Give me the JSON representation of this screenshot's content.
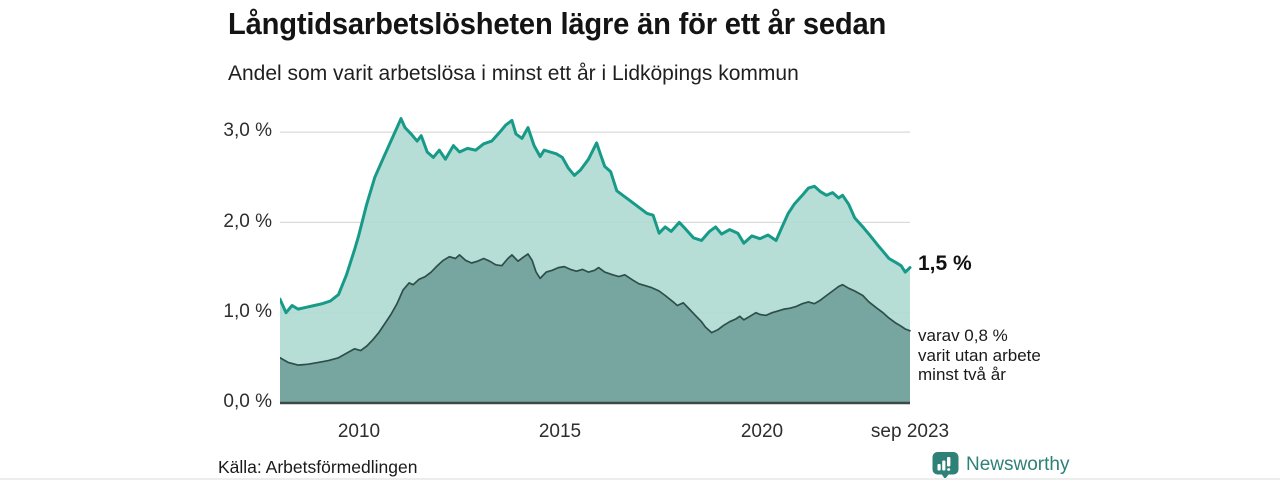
{
  "header": {
    "title": "Långtidsarbetslösheten lägre än för ett år sedan",
    "subtitle": "Andel som varit arbetslösa i minst ett år i Lidköpings kommun"
  },
  "footer": {
    "source": "Källa: Arbetsförmedlingen",
    "brand": "Newsworthy"
  },
  "chart_data": {
    "type": "area",
    "title": "Långtidsarbetslösheten lägre än för ett år sedan",
    "subtitle": "Andel som varit arbetslösa i minst ett år i Lidköpings kommun",
    "unit": "%",
    "t_range": [
      2008.05,
      2023.67
    ],
    "ylim": [
      0,
      3.3
    ],
    "grid": true,
    "grid_values": [
      1,
      2,
      3
    ],
    "y_ticks": [
      {
        "label": "3,0 %",
        "v": 3.0
      },
      {
        "label": "2,0 %",
        "v": 2.0
      },
      {
        "label": "1,0 %",
        "v": 1.0
      },
      {
        "label": "0,0 %",
        "v": 0.0
      }
    ],
    "x_ticks": [
      {
        "label": "2010",
        "t": 2010
      },
      {
        "label": "2015",
        "t": 2015
      },
      {
        "label": "2020",
        "t": 2020
      },
      {
        "label": "sep 2023",
        "t": 2023.67
      }
    ],
    "end_labels": {
      "primary": "1,5 %",
      "secondary_lines": [
        "varav 0,8 %",
        "varit utan arbete",
        "minst två år"
      ]
    },
    "colors": {
      "grid": "#dadada",
      "axis": "#3c4946",
      "teal_line": "#189a89",
      "teal_fill": "#afdad2",
      "dark_line": "#2e4e4a",
      "dark_fill": "#6fa099",
      "brand": "#2f8077"
    },
    "series": [
      {
        "id": "min-one-year",
        "name": "Arbetslösa minst ett år",
        "end_value": 1.5,
        "line_color": "#189a89",
        "fill_color": "#afdad2",
        "points": [
          [
            2008.05,
            1.15
          ],
          [
            2008.2,
            1.0
          ],
          [
            2008.35,
            1.08
          ],
          [
            2008.5,
            1.04
          ],
          [
            2008.7,
            1.06
          ],
          [
            2008.9,
            1.08
          ],
          [
            2009.1,
            1.1
          ],
          [
            2009.3,
            1.13
          ],
          [
            2009.5,
            1.2
          ],
          [
            2009.7,
            1.42
          ],
          [
            2009.9,
            1.7
          ],
          [
            2010.0,
            1.85
          ],
          [
            2010.2,
            2.2
          ],
          [
            2010.4,
            2.5
          ],
          [
            2010.6,
            2.7
          ],
          [
            2010.8,
            2.9
          ],
          [
            2010.95,
            3.05
          ],
          [
            2011.05,
            3.15
          ],
          [
            2011.15,
            3.05
          ],
          [
            2011.3,
            2.98
          ],
          [
            2011.45,
            2.9
          ],
          [
            2011.55,
            2.96
          ],
          [
            2011.7,
            2.78
          ],
          [
            2011.85,
            2.72
          ],
          [
            2012.0,
            2.8
          ],
          [
            2012.15,
            2.7
          ],
          [
            2012.35,
            2.85
          ],
          [
            2012.5,
            2.78
          ],
          [
            2012.7,
            2.82
          ],
          [
            2012.9,
            2.8
          ],
          [
            2013.1,
            2.87
          ],
          [
            2013.3,
            2.9
          ],
          [
            2013.5,
            3.0
          ],
          [
            2013.65,
            3.08
          ],
          [
            2013.8,
            3.13
          ],
          [
            2013.9,
            2.98
          ],
          [
            2014.05,
            2.93
          ],
          [
            2014.2,
            3.05
          ],
          [
            2014.35,
            2.85
          ],
          [
            2014.5,
            2.73
          ],
          [
            2014.6,
            2.8
          ],
          [
            2014.75,
            2.78
          ],
          [
            2014.9,
            2.76
          ],
          [
            2015.05,
            2.72
          ],
          [
            2015.2,
            2.6
          ],
          [
            2015.35,
            2.52
          ],
          [
            2015.5,
            2.58
          ],
          [
            2015.7,
            2.7
          ],
          [
            2015.9,
            2.88
          ],
          [
            2016.0,
            2.75
          ],
          [
            2016.1,
            2.62
          ],
          [
            2016.25,
            2.56
          ],
          [
            2016.4,
            2.35
          ],
          [
            2016.55,
            2.3
          ],
          [
            2016.7,
            2.25
          ],
          [
            2016.85,
            2.2
          ],
          [
            2017.0,
            2.15
          ],
          [
            2017.15,
            2.1
          ],
          [
            2017.3,
            2.08
          ],
          [
            2017.45,
            1.88
          ],
          [
            2017.6,
            1.95
          ],
          [
            2017.75,
            1.9
          ],
          [
            2017.95,
            2.0
          ],
          [
            2018.1,
            1.93
          ],
          [
            2018.3,
            1.83
          ],
          [
            2018.5,
            1.8
          ],
          [
            2018.7,
            1.9
          ],
          [
            2018.85,
            1.95
          ],
          [
            2019.0,
            1.87
          ],
          [
            2019.2,
            1.92
          ],
          [
            2019.4,
            1.88
          ],
          [
            2019.55,
            1.77
          ],
          [
            2019.75,
            1.85
          ],
          [
            2019.95,
            1.82
          ],
          [
            2020.15,
            1.86
          ],
          [
            2020.35,
            1.8
          ],
          [
            2020.5,
            1.95
          ],
          [
            2020.65,
            2.1
          ],
          [
            2020.8,
            2.2
          ],
          [
            2021.0,
            2.3
          ],
          [
            2021.15,
            2.38
          ],
          [
            2021.3,
            2.4
          ],
          [
            2021.45,
            2.34
          ],
          [
            2021.6,
            2.3
          ],
          [
            2021.75,
            2.33
          ],
          [
            2021.9,
            2.27
          ],
          [
            2022.0,
            2.3
          ],
          [
            2022.15,
            2.2
          ],
          [
            2022.3,
            2.05
          ],
          [
            2022.5,
            1.95
          ],
          [
            2022.65,
            1.87
          ],
          [
            2022.85,
            1.76
          ],
          [
            2023.0,
            1.68
          ],
          [
            2023.15,
            1.6
          ],
          [
            2023.3,
            1.56
          ],
          [
            2023.45,
            1.52
          ],
          [
            2023.55,
            1.45
          ],
          [
            2023.67,
            1.5
          ]
        ]
      },
      {
        "id": "min-two-years",
        "name": "Arbetslösa minst två år",
        "end_value": 0.8,
        "line_color": "#2e4e4a",
        "fill_color": "#6fa099",
        "points": [
          [
            2008.05,
            0.5
          ],
          [
            2008.25,
            0.45
          ],
          [
            2008.5,
            0.42
          ],
          [
            2008.75,
            0.43
          ],
          [
            2009.0,
            0.45
          ],
          [
            2009.25,
            0.47
          ],
          [
            2009.5,
            0.5
          ],
          [
            2009.7,
            0.55
          ],
          [
            2009.9,
            0.6
          ],
          [
            2010.05,
            0.58
          ],
          [
            2010.2,
            0.63
          ],
          [
            2010.35,
            0.7
          ],
          [
            2010.5,
            0.78
          ],
          [
            2010.65,
            0.88
          ],
          [
            2010.8,
            0.98
          ],
          [
            2010.95,
            1.1
          ],
          [
            2011.1,
            1.25
          ],
          [
            2011.25,
            1.33
          ],
          [
            2011.35,
            1.31
          ],
          [
            2011.5,
            1.37
          ],
          [
            2011.65,
            1.4
          ],
          [
            2011.8,
            1.45
          ],
          [
            2011.95,
            1.52
          ],
          [
            2012.1,
            1.58
          ],
          [
            2012.25,
            1.62
          ],
          [
            2012.4,
            1.6
          ],
          [
            2012.5,
            1.64
          ],
          [
            2012.65,
            1.58
          ],
          [
            2012.8,
            1.55
          ],
          [
            2012.95,
            1.57
          ],
          [
            2013.1,
            1.6
          ],
          [
            2013.25,
            1.57
          ],
          [
            2013.4,
            1.53
          ],
          [
            2013.55,
            1.52
          ],
          [
            2013.7,
            1.6
          ],
          [
            2013.8,
            1.64
          ],
          [
            2013.95,
            1.57
          ],
          [
            2014.1,
            1.62
          ],
          [
            2014.2,
            1.65
          ],
          [
            2014.3,
            1.58
          ],
          [
            2014.4,
            1.45
          ],
          [
            2014.5,
            1.38
          ],
          [
            2014.65,
            1.45
          ],
          [
            2014.8,
            1.47
          ],
          [
            2014.95,
            1.5
          ],
          [
            2015.1,
            1.51
          ],
          [
            2015.25,
            1.48
          ],
          [
            2015.4,
            1.46
          ],
          [
            2015.55,
            1.48
          ],
          [
            2015.7,
            1.45
          ],
          [
            2015.85,
            1.47
          ],
          [
            2015.95,
            1.5
          ],
          [
            2016.1,
            1.45
          ],
          [
            2016.3,
            1.42
          ],
          [
            2016.45,
            1.4
          ],
          [
            2016.6,
            1.42
          ],
          [
            2016.8,
            1.36
          ],
          [
            2016.95,
            1.32
          ],
          [
            2017.1,
            1.3
          ],
          [
            2017.25,
            1.28
          ],
          [
            2017.45,
            1.24
          ],
          [
            2017.6,
            1.19
          ],
          [
            2017.8,
            1.12
          ],
          [
            2017.9,
            1.08
          ],
          [
            2018.05,
            1.11
          ],
          [
            2018.2,
            1.04
          ],
          [
            2018.35,
            0.97
          ],
          [
            2018.5,
            0.9
          ],
          [
            2018.6,
            0.84
          ],
          [
            2018.75,
            0.78
          ],
          [
            2018.9,
            0.81
          ],
          [
            2019.05,
            0.86
          ],
          [
            2019.2,
            0.9
          ],
          [
            2019.35,
            0.93
          ],
          [
            2019.45,
            0.96
          ],
          [
            2019.55,
            0.92
          ],
          [
            2019.7,
            0.96
          ],
          [
            2019.85,
            1.0
          ],
          [
            2019.95,
            0.98
          ],
          [
            2020.1,
            0.97
          ],
          [
            2020.25,
            1.0
          ],
          [
            2020.4,
            1.02
          ],
          [
            2020.55,
            1.04
          ],
          [
            2020.7,
            1.05
          ],
          [
            2020.85,
            1.07
          ],
          [
            2021.0,
            1.1
          ],
          [
            2021.15,
            1.12
          ],
          [
            2021.3,
            1.1
          ],
          [
            2021.45,
            1.14
          ],
          [
            2021.6,
            1.19
          ],
          [
            2021.75,
            1.24
          ],
          [
            2021.9,
            1.29
          ],
          [
            2022.0,
            1.31
          ],
          [
            2022.15,
            1.27
          ],
          [
            2022.3,
            1.24
          ],
          [
            2022.5,
            1.19
          ],
          [
            2022.65,
            1.12
          ],
          [
            2022.85,
            1.05
          ],
          [
            2023.0,
            1.0
          ],
          [
            2023.15,
            0.94
          ],
          [
            2023.3,
            0.89
          ],
          [
            2023.45,
            0.85
          ],
          [
            2023.55,
            0.82
          ],
          [
            2023.67,
            0.8
          ]
        ]
      }
    ]
  }
}
